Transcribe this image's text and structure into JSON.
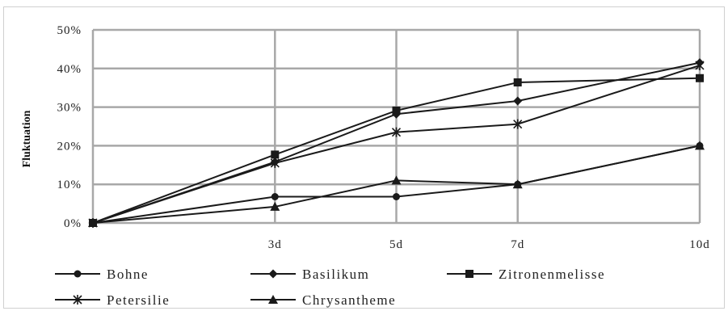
{
  "chart_data": {
    "type": "line",
    "title": "",
    "xlabel": "",
    "ylabel": "Fluktuation",
    "x": [
      "",
      "3d",
      "5d",
      "7d",
      "10d"
    ],
    "x_values": [
      0,
      3,
      5,
      7,
      10
    ],
    "ylim": [
      0,
      50
    ],
    "yticks": [
      "0%",
      "10%",
      "20%",
      "30%",
      "40%",
      "50%"
    ],
    "grid": true,
    "legend_position": "bottom",
    "series": [
      {
        "name": "Bohne",
        "marker": "circle",
        "values": [
          0,
          6.8,
          6.8,
          10,
          20
        ]
      },
      {
        "name": "Basilikum",
        "marker": "diamond",
        "values": [
          0,
          15.8,
          28.2,
          31.6,
          41.5
        ]
      },
      {
        "name": "Zitronenmelisse",
        "marker": "square",
        "values": [
          0,
          17.7,
          29.1,
          36.4,
          37.5
        ]
      },
      {
        "name": "Petersilie",
        "marker": "star",
        "values": [
          0,
          15.5,
          23.5,
          25.6,
          40.8
        ]
      },
      {
        "name": "Chrysantheme",
        "marker": "triangle",
        "values": [
          0,
          4.2,
          11,
          10,
          20
        ]
      }
    ]
  }
}
